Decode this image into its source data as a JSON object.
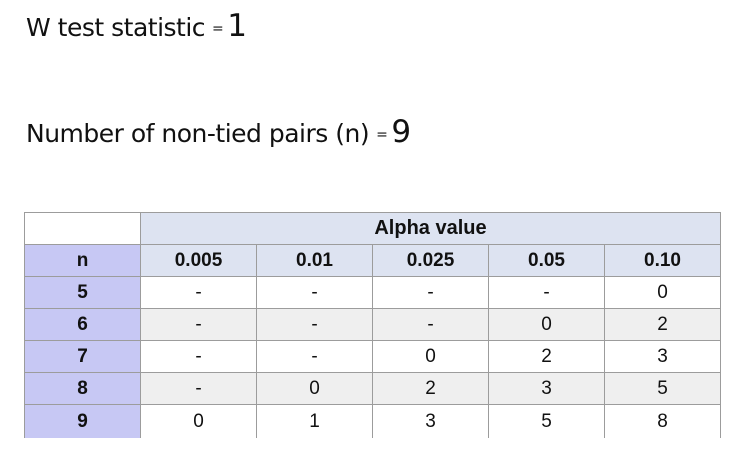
{
  "statistics": {
    "w_label": "W test statistic",
    "w_eq": "=",
    "w_value": "1",
    "n_label": "Number of non-tied pairs (n)",
    "n_eq": "=",
    "n_value": "9"
  },
  "table": {
    "group_header": "Alpha value",
    "n_header": "n",
    "alpha_columns": [
      "0.005",
      "0.01",
      "0.025",
      "0.05",
      "0.10"
    ],
    "rows": [
      {
        "n": "5",
        "values": [
          "-",
          "-",
          "-",
          "-",
          "0"
        ]
      },
      {
        "n": "6",
        "values": [
          "-",
          "-",
          "-",
          "0",
          "2"
        ]
      },
      {
        "n": "7",
        "values": [
          "-",
          "-",
          "0",
          "2",
          "3"
        ]
      },
      {
        "n": "8",
        "values": [
          "-",
          "0",
          "2",
          "3",
          "5"
        ]
      },
      {
        "n": "9",
        "values": [
          "0",
          "1",
          "3",
          "5",
          "8"
        ]
      }
    ]
  },
  "colors": {
    "header_fill": "#dde3f1",
    "n_column_fill": "#c7c8f4",
    "alt_row_fill": "#efefef",
    "border": "#9c9c9c"
  }
}
